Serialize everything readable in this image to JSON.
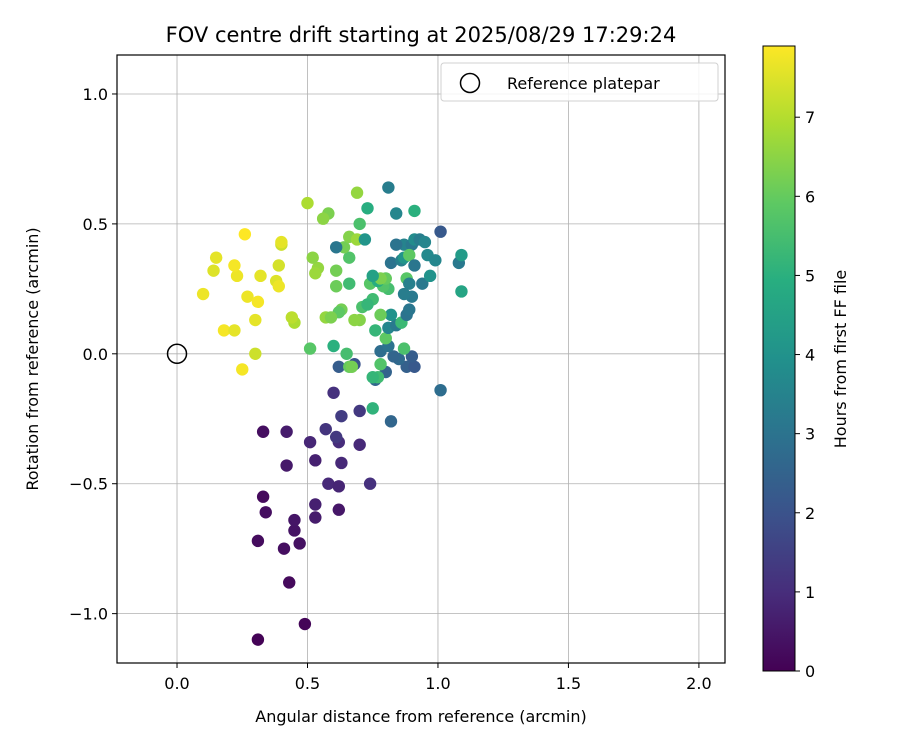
{
  "chart_data": {
    "type": "scatter",
    "title": "FOV centre drift starting at 2025/08/29 17:29:24",
    "xlabel": "Angular distance from reference (arcmin)",
    "ylabel": "Rotation from reference (arcmin)",
    "xlim": [
      -0.23,
      2.1
    ],
    "ylim": [
      -1.19,
      1.15
    ],
    "xticks": [
      0.0,
      0.5,
      1.0,
      1.5,
      2.0
    ],
    "xtick_labels": [
      "0.0",
      "0.5",
      "1.0",
      "1.5",
      "2.0"
    ],
    "yticks": [
      -1.0,
      -0.5,
      0.0,
      0.5,
      1.0
    ],
    "ytick_labels": [
      "−1.0",
      "−0.5",
      "0.0",
      "0.5",
      "1.0"
    ],
    "grid": true,
    "legend": {
      "placement": "top-right",
      "entries": [
        "Reference platepar"
      ]
    },
    "reference_point": {
      "x": 0.0,
      "y": 0.0
    },
    "colorbar": {
      "label": "Hours from first FF file",
      "colormap": "viridis",
      "range": [
        0,
        7.9
      ],
      "ticks": [
        0,
        1,
        2,
        3,
        4,
        5,
        6,
        7
      ],
      "tick_labels": [
        "0",
        "1",
        "2",
        "3",
        "4",
        "5",
        "6",
        "7"
      ]
    },
    "points": [
      {
        "x": 0.31,
        "y": -1.1,
        "c": 0.05
      },
      {
        "x": 0.49,
        "y": -1.04,
        "c": 0.1
      },
      {
        "x": 0.43,
        "y": -0.88,
        "c": 0.2
      },
      {
        "x": 0.41,
        "y": -0.75,
        "c": 0.3
      },
      {
        "x": 0.47,
        "y": -0.73,
        "c": 0.35
      },
      {
        "x": 0.31,
        "y": -0.72,
        "c": 0.25
      },
      {
        "x": 0.45,
        "y": -0.68,
        "c": 0.4
      },
      {
        "x": 0.45,
        "y": -0.64,
        "c": 0.45
      },
      {
        "x": 0.34,
        "y": -0.61,
        "c": 0.3
      },
      {
        "x": 0.33,
        "y": -0.55,
        "c": 0.2
      },
      {
        "x": 0.53,
        "y": -0.63,
        "c": 0.6
      },
      {
        "x": 0.62,
        "y": -0.6,
        "c": 0.5
      },
      {
        "x": 0.53,
        "y": -0.58,
        "c": 0.7
      },
      {
        "x": 0.58,
        "y": -0.5,
        "c": 0.9
      },
      {
        "x": 0.62,
        "y": -0.51,
        "c": 0.8
      },
      {
        "x": 0.74,
        "y": -0.5,
        "c": 1.1
      },
      {
        "x": 0.42,
        "y": -0.43,
        "c": 0.55
      },
      {
        "x": 0.53,
        "y": -0.41,
        "c": 0.7
      },
      {
        "x": 0.63,
        "y": -0.42,
        "c": 0.9
      },
      {
        "x": 0.51,
        "y": -0.34,
        "c": 0.85
      },
      {
        "x": 0.62,
        "y": -0.34,
        "c": 1.0
      },
      {
        "x": 0.7,
        "y": -0.35,
        "c": 0.9
      },
      {
        "x": 0.33,
        "y": -0.3,
        "c": 0.3
      },
      {
        "x": 0.42,
        "y": -0.3,
        "c": 0.6
      },
      {
        "x": 0.57,
        "y": -0.29,
        "c": 1.2
      },
      {
        "x": 0.61,
        "y": -0.32,
        "c": 1.3
      },
      {
        "x": 0.63,
        "y": -0.24,
        "c": 1.4
      },
      {
        "x": 0.7,
        "y": -0.22,
        "c": 1.3
      },
      {
        "x": 0.6,
        "y": -0.15,
        "c": 1.1
      },
      {
        "x": 0.82,
        "y": -0.26,
        "c": 2.6
      },
      {
        "x": 1.01,
        "y": -0.14,
        "c": 2.8
      },
      {
        "x": 0.75,
        "y": -0.21,
        "c": 5.1
      },
      {
        "x": 0.62,
        "y": -0.05,
        "c": 2.3
      },
      {
        "x": 0.68,
        "y": -0.04,
        "c": 2.0
      },
      {
        "x": 0.76,
        "y": -0.1,
        "c": 2.6
      },
      {
        "x": 0.8,
        "y": -0.07,
        "c": 2.5
      },
      {
        "x": 0.88,
        "y": -0.05,
        "c": 2.4
      },
      {
        "x": 0.91,
        "y": -0.05,
        "c": 2.2
      },
      {
        "x": 0.9,
        "y": -0.01,
        "c": 2.3
      },
      {
        "x": 0.85,
        "y": -0.02,
        "c": 2.7
      },
      {
        "x": 0.83,
        "y": -0.01,
        "c": 2.6
      },
      {
        "x": 0.78,
        "y": 0.01,
        "c": 2.8
      },
      {
        "x": 0.81,
        "y": 0.03,
        "c": 3.0
      },
      {
        "x": 0.77,
        "y": -0.09,
        "c": 5.4
      },
      {
        "x": 0.75,
        "y": -0.09,
        "c": 5.2
      },
      {
        "x": 0.66,
        "y": -0.05,
        "c": 6.0
      },
      {
        "x": 0.6,
        "y": 0.03,
        "c": 5.0
      },
      {
        "x": 0.65,
        "y": 0.0,
        "c": 5.5
      },
      {
        "x": 0.67,
        "y": -0.05,
        "c": 6.2
      },
      {
        "x": 0.51,
        "y": 0.02,
        "c": 5.8
      },
      {
        "x": 0.78,
        "y": -0.04,
        "c": 5.7
      },
      {
        "x": 0.8,
        "y": 0.06,
        "c": 5.9
      },
      {
        "x": 0.87,
        "y": 0.02,
        "c": 5.6
      },
      {
        "x": 0.76,
        "y": 0.09,
        "c": 5.2
      },
      {
        "x": 0.81,
        "y": 0.1,
        "c": 3.6
      },
      {
        "x": 0.84,
        "y": 0.11,
        "c": 3.2
      },
      {
        "x": 0.86,
        "y": 0.12,
        "c": 5.3
      },
      {
        "x": 0.82,
        "y": 0.15,
        "c": 4.0
      },
      {
        "x": 0.78,
        "y": 0.15,
        "c": 6.1
      },
      {
        "x": 0.88,
        "y": 0.15,
        "c": 3.0
      },
      {
        "x": 0.89,
        "y": 0.17,
        "c": 3.1
      },
      {
        "x": 0.9,
        "y": 0.22,
        "c": 3.2
      },
      {
        "x": 0.87,
        "y": 0.23,
        "c": 3.3
      },
      {
        "x": 0.81,
        "y": 0.25,
        "c": 5.5
      },
      {
        "x": 0.79,
        "y": 0.26,
        "c": 5.7
      },
      {
        "x": 0.75,
        "y": 0.21,
        "c": 5.4
      },
      {
        "x": 0.71,
        "y": 0.18,
        "c": 5.6
      },
      {
        "x": 0.73,
        "y": 0.19,
        "c": 5.2
      },
      {
        "x": 0.7,
        "y": 0.13,
        "c": 6.4
      },
      {
        "x": 0.68,
        "y": 0.13,
        "c": 6.5
      },
      {
        "x": 0.63,
        "y": 0.17,
        "c": 6.2
      },
      {
        "x": 0.62,
        "y": 0.16,
        "c": 5.9
      },
      {
        "x": 0.57,
        "y": 0.14,
        "c": 6.6
      },
      {
        "x": 0.59,
        "y": 0.14,
        "c": 6.3
      },
      {
        "x": 0.45,
        "y": 0.12,
        "c": 6.9
      },
      {
        "x": 0.44,
        "y": 0.14,
        "c": 7.1
      },
      {
        "x": 0.74,
        "y": 0.27,
        "c": 5.8
      },
      {
        "x": 0.77,
        "y": 0.28,
        "c": 4.9
      },
      {
        "x": 0.8,
        "y": 0.29,
        "c": 6.0
      },
      {
        "x": 0.78,
        "y": 0.29,
        "c": 6.3
      },
      {
        "x": 0.75,
        "y": 0.3,
        "c": 4.5
      },
      {
        "x": 0.66,
        "y": 0.27,
        "c": 5.4
      },
      {
        "x": 0.61,
        "y": 0.26,
        "c": 6.1
      },
      {
        "x": 0.61,
        "y": 0.32,
        "c": 6.2
      },
      {
        "x": 0.54,
        "y": 0.33,
        "c": 6.6
      },
      {
        "x": 0.53,
        "y": 0.31,
        "c": 6.7
      },
      {
        "x": 0.52,
        "y": 0.37,
        "c": 6.5
      },
      {
        "x": 0.66,
        "y": 0.37,
        "c": 5.7
      },
      {
        "x": 0.64,
        "y": 0.41,
        "c": 6.2
      },
      {
        "x": 0.61,
        "y": 0.41,
        "c": 3.1
      },
      {
        "x": 0.66,
        "y": 0.45,
        "c": 6.4
      },
      {
        "x": 0.69,
        "y": 0.44,
        "c": 6.7
      },
      {
        "x": 0.72,
        "y": 0.44,
        "c": 4.1
      },
      {
        "x": 0.58,
        "y": 0.54,
        "c": 6.3
      },
      {
        "x": 0.56,
        "y": 0.52,
        "c": 6.5
      },
      {
        "x": 0.5,
        "y": 0.58,
        "c": 6.9
      },
      {
        "x": 0.7,
        "y": 0.5,
        "c": 5.6
      },
      {
        "x": 0.73,
        "y": 0.56,
        "c": 4.9
      },
      {
        "x": 0.69,
        "y": 0.62,
        "c": 6.6
      },
      {
        "x": 0.81,
        "y": 0.64,
        "c": 3.3
      },
      {
        "x": 0.84,
        "y": 0.54,
        "c": 3.6
      },
      {
        "x": 0.91,
        "y": 0.55,
        "c": 5.0
      },
      {
        "x": 0.82,
        "y": 0.35,
        "c": 3.0
      },
      {
        "x": 0.86,
        "y": 0.36,
        "c": 3.4
      },
      {
        "x": 0.87,
        "y": 0.37,
        "c": 4.1
      },
      {
        "x": 0.87,
        "y": 0.42,
        "c": 3.5
      },
      {
        "x": 0.9,
        "y": 0.42,
        "c": 3.2
      },
      {
        "x": 0.91,
        "y": 0.44,
        "c": 3.8
      },
      {
        "x": 0.93,
        "y": 0.44,
        "c": 3.3
      },
      {
        "x": 0.95,
        "y": 0.43,
        "c": 3.6
      },
      {
        "x": 0.89,
        "y": 0.38,
        "c": 5.9
      },
      {
        "x": 0.88,
        "y": 0.29,
        "c": 5.8
      },
      {
        "x": 0.89,
        "y": 0.27,
        "c": 3.4
      },
      {
        "x": 0.94,
        "y": 0.27,
        "c": 3.2
      },
      {
        "x": 0.91,
        "y": 0.34,
        "c": 3.1
      },
      {
        "x": 0.96,
        "y": 0.38,
        "c": 3.7
      },
      {
        "x": 0.99,
        "y": 0.36,
        "c": 3.6
      },
      {
        "x": 0.97,
        "y": 0.3,
        "c": 4.0
      },
      {
        "x": 1.01,
        "y": 0.47,
        "c": 2.2
      },
      {
        "x": 1.08,
        "y": 0.35,
        "c": 3.2
      },
      {
        "x": 1.09,
        "y": 0.38,
        "c": 4.3
      },
      {
        "x": 1.09,
        "y": 0.24,
        "c": 4.6
      },
      {
        "x": 0.84,
        "y": 0.42,
        "c": 3.0
      },
      {
        "x": 0.15,
        "y": 0.37,
        "c": 7.6
      },
      {
        "x": 0.14,
        "y": 0.32,
        "c": 7.5
      },
      {
        "x": 0.1,
        "y": 0.23,
        "c": 7.7
      },
      {
        "x": 0.18,
        "y": 0.09,
        "c": 7.8
      },
      {
        "x": 0.22,
        "y": 0.09,
        "c": 7.6
      },
      {
        "x": 0.23,
        "y": 0.3,
        "c": 7.7
      },
      {
        "x": 0.22,
        "y": 0.34,
        "c": 7.8
      },
      {
        "x": 0.26,
        "y": 0.46,
        "c": 7.9
      },
      {
        "x": 0.27,
        "y": 0.22,
        "c": 7.7
      },
      {
        "x": 0.3,
        "y": 0.13,
        "c": 7.6
      },
      {
        "x": 0.31,
        "y": 0.2,
        "c": 7.8
      },
      {
        "x": 0.32,
        "y": 0.3,
        "c": 7.6
      },
      {
        "x": 0.38,
        "y": 0.28,
        "c": 7.5
      },
      {
        "x": 0.39,
        "y": 0.26,
        "c": 7.7
      },
      {
        "x": 0.39,
        "y": 0.34,
        "c": 7.4
      },
      {
        "x": 0.4,
        "y": 0.42,
        "c": 7.3
      },
      {
        "x": 0.4,
        "y": 0.43,
        "c": 7.6
      },
      {
        "x": 0.25,
        "y": -0.06,
        "c": 7.8
      },
      {
        "x": 0.3,
        "y": 0.0,
        "c": 7.3
      }
    ]
  }
}
